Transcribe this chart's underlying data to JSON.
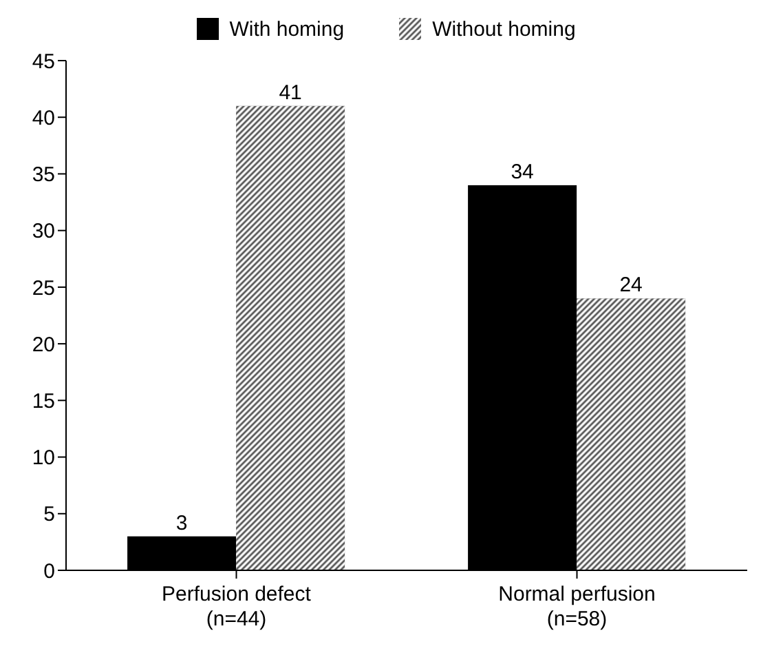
{
  "chart_data": {
    "type": "bar",
    "categories": [
      "Perfusion defect\n(n=44)",
      "Normal perfusion\n(n=58)"
    ],
    "series": [
      {
        "name": "With homing",
        "color": "#000000",
        "values": [
          3,
          34
        ]
      },
      {
        "name": "Without homing",
        "color": "#555555",
        "values": [
          41,
          24
        ]
      }
    ],
    "ylim": [
      0,
      45
    ],
    "yticks": [
      0,
      5,
      10,
      15,
      20,
      25,
      30,
      35,
      40,
      45
    ],
    "grid": false,
    "legend": "top",
    "data_labels": true
  }
}
